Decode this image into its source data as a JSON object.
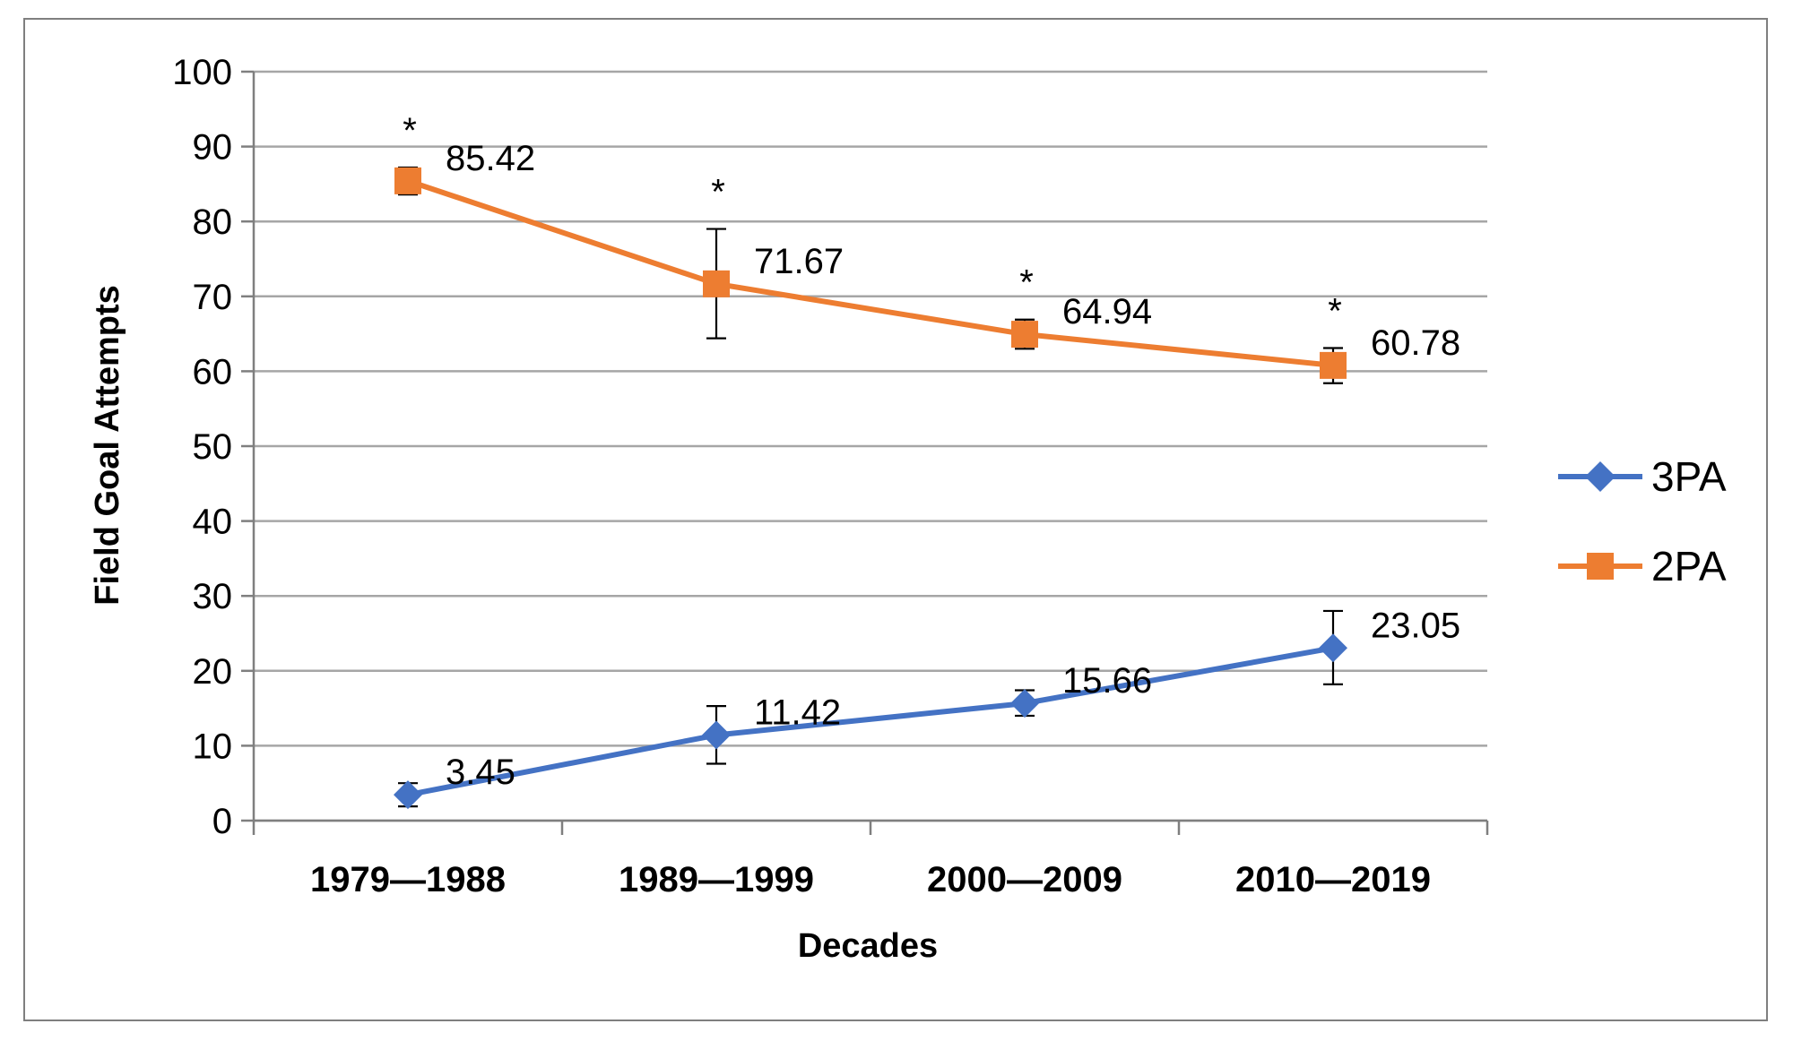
{
  "chart_data": {
    "type": "line",
    "xlabel": "Decades",
    "ylabel": "Field Goal Attempts",
    "ylim": [
      0,
      100
    ],
    "yticks": [
      0,
      10,
      20,
      30,
      40,
      50,
      60,
      70,
      80,
      90,
      100
    ],
    "categories": [
      "1979—1988",
      "1989—1999",
      "2000—2009",
      "2010—2019"
    ],
    "grid": true,
    "legend_position": "right",
    "series": [
      {
        "name": "3PA",
        "color": "#4472c4",
        "marker": "diamond",
        "values": [
          3.45,
          11.42,
          15.66,
          23.05
        ],
        "labels": [
          "3.45",
          "11.42",
          "15.66",
          "23.05"
        ],
        "error_low": [
          1.9,
          7.6,
          14.0,
          18.2
        ],
        "error_high": [
          5.0,
          15.3,
          17.4,
          28.0
        ]
      },
      {
        "name": "2PA",
        "color": "#ed7d31",
        "marker": "square",
        "values": [
          85.42,
          71.67,
          64.94,
          60.78
        ],
        "labels": [
          "85.42",
          "71.67",
          "64.94",
          "60.78"
        ],
        "error_low": [
          83.6,
          64.4,
          63.0,
          58.4
        ],
        "error_high": [
          87.2,
          79.0,
          66.9,
          63.1
        ],
        "annotations": [
          "*",
          "*",
          "*",
          "*"
        ]
      }
    ]
  }
}
